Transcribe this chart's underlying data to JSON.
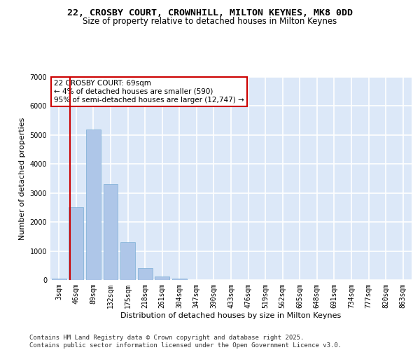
{
  "title_line1": "22, CROSBY COURT, CROWNHILL, MILTON KEYNES, MK8 0DD",
  "title_line2": "Size of property relative to detached houses in Milton Keynes",
  "xlabel": "Distribution of detached houses by size in Milton Keynes",
  "ylabel": "Number of detached properties",
  "categories": [
    "3sqm",
    "46sqm",
    "89sqm",
    "132sqm",
    "175sqm",
    "218sqm",
    "261sqm",
    "304sqm",
    "347sqm",
    "390sqm",
    "433sqm",
    "476sqm",
    "519sqm",
    "562sqm",
    "605sqm",
    "648sqm",
    "691sqm",
    "734sqm",
    "777sqm",
    "820sqm",
    "863sqm"
  ],
  "bar_heights": [
    50,
    2500,
    5200,
    3300,
    1300,
    400,
    120,
    50,
    0,
    0,
    0,
    0,
    0,
    0,
    0,
    0,
    0,
    0,
    0,
    0,
    0
  ],
  "bar_color": "#aec6e8",
  "bar_edge_color": "#7aadd4",
  "background_color": "#dce8f8",
  "grid_color": "#ffffff",
  "vline_color": "#cc0000",
  "annotation_text": "22 CROSBY COURT: 69sqm\n← 4% of detached houses are smaller (590)\n95% of semi-detached houses are larger (12,747) →",
  "annotation_box_color": "#cc0000",
  "ylim": [
    0,
    7000
  ],
  "yticks": [
    0,
    1000,
    2000,
    3000,
    4000,
    5000,
    6000,
    7000
  ],
  "footer_text": "Contains HM Land Registry data © Crown copyright and database right 2025.\nContains public sector information licensed under the Open Government Licence v3.0.",
  "title1_fontsize": 9.5,
  "title2_fontsize": 8.5,
  "axis_label_fontsize": 8,
  "tick_fontsize": 7,
  "footer_fontsize": 6.5
}
